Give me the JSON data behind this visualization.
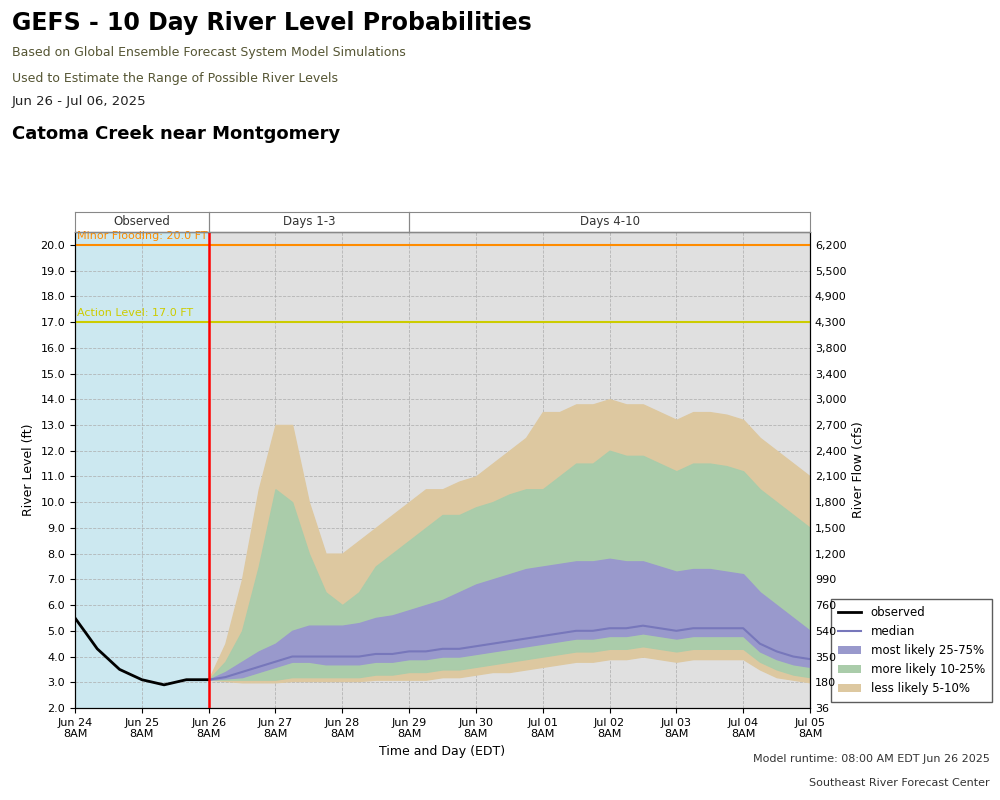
{
  "title": "GEFS - 10 Day River Level Probabilities",
  "subtitle1": "Based on Global Ensemble Forecast System Model Simulations",
  "subtitle2": "Used to Estimate the Range of Possible River Levels",
  "date_range": "Jun 26 - Jul 06, 2025",
  "location": "Catoma Creek near Montgomery",
  "header_bg": "#d4d4a0",
  "plot_bg_observed": "#cce8f0",
  "plot_bg_forecast": "#e0e0e0",
  "minor_flood_level": 20.0,
  "action_level": 17.0,
  "minor_flood_color": "#ff8c00",
  "action_level_color": "#cccc00",
  "ylabel_left": "River Level (ft)",
  "ylabel_right": "River Flow (cfs)",
  "xlabel": "Time and Day (EDT)",
  "ylim_left": [
    2.0,
    20.5
  ],
  "yticks_left": [
    2.0,
    3.0,
    4.0,
    5.0,
    6.0,
    7.0,
    8.0,
    9.0,
    10.0,
    11.0,
    12.0,
    13.0,
    14.0,
    15.0,
    16.0,
    17.0,
    18.0,
    19.0,
    20.0
  ],
  "yticks_right": [
    36,
    180,
    350,
    540,
    760,
    990,
    1200,
    1500,
    1800,
    2100,
    2400,
    2700,
    3000,
    3400,
    3800,
    4300,
    4900,
    5500,
    6200
  ],
  "model_runtime": "Model runtime: 08:00 AM EDT Jun 26 2025",
  "forecast_center": "Southeast River Forecast Center",
  "observed_color": "#000000",
  "median_color": "#7777bb",
  "band25_75_color": "#9999cc",
  "band10_25_color": "#aaccaa",
  "band5_10_color": "#ddc8a0",
  "xtick_labels": [
    "Jun 24\n8AM",
    "Jun 25\n8AM",
    "Jun 26\n8AM",
    "Jun 27\n8AM",
    "Jun 28\n8AM",
    "Jun 29\n8AM",
    "Jun 30\n8AM",
    "Jul 01\n8AM",
    "Jul 02\n8AM",
    "Jul 03\n8AM",
    "Jul 04\n8AM",
    "Jul 05\n8AM"
  ],
  "xtick_positions": [
    0,
    1,
    2,
    3,
    4,
    5,
    6,
    7,
    8,
    9,
    10,
    11
  ],
  "observed_x": [
    0.0,
    0.083,
    0.167,
    0.25,
    0.333,
    0.417,
    0.5,
    0.583,
    0.667,
    0.75,
    0.833,
    0.917,
    1.0,
    1.083,
    1.167,
    1.25,
    1.333,
    1.417,
    1.5,
    1.583,
    1.667,
    1.75,
    1.833,
    1.917,
    2.0
  ],
  "observed_y": [
    5.5,
    5.2,
    4.9,
    4.6,
    4.3,
    4.1,
    3.9,
    3.7,
    3.5,
    3.4,
    3.3,
    3.2,
    3.1,
    3.05,
    3.0,
    2.95,
    2.9,
    2.95,
    3.0,
    3.05,
    3.1,
    3.1,
    3.1,
    3.1,
    3.1
  ],
  "forecast_x": [
    2.0,
    2.25,
    2.5,
    2.75,
    3.0,
    3.25,
    3.5,
    3.75,
    4.0,
    4.25,
    4.5,
    4.75,
    5.0,
    5.25,
    5.5,
    5.75,
    6.0,
    6.25,
    6.5,
    6.75,
    7.0,
    7.25,
    7.5,
    7.75,
    8.0,
    8.25,
    8.5,
    8.75,
    9.0,
    9.25,
    9.5,
    9.75,
    10.0,
    10.25,
    10.5,
    10.75,
    11.0
  ],
  "median_y": [
    3.1,
    3.2,
    3.4,
    3.6,
    3.8,
    4.0,
    4.0,
    4.0,
    4.0,
    4.0,
    4.1,
    4.1,
    4.2,
    4.2,
    4.3,
    4.3,
    4.4,
    4.5,
    4.6,
    4.7,
    4.8,
    4.9,
    5.0,
    5.0,
    5.1,
    5.1,
    5.2,
    5.1,
    5.0,
    5.1,
    5.1,
    5.1,
    5.1,
    4.5,
    4.2,
    4.0,
    3.9
  ],
  "p25_y": [
    3.1,
    3.15,
    3.2,
    3.4,
    3.6,
    3.8,
    3.8,
    3.7,
    3.7,
    3.7,
    3.8,
    3.8,
    3.9,
    3.9,
    4.0,
    4.0,
    4.1,
    4.2,
    4.3,
    4.4,
    4.5,
    4.6,
    4.7,
    4.7,
    4.8,
    4.8,
    4.9,
    4.8,
    4.7,
    4.8,
    4.8,
    4.8,
    4.8,
    4.2,
    3.9,
    3.7,
    3.6
  ],
  "p75_y": [
    3.1,
    3.4,
    3.8,
    4.2,
    4.5,
    5.0,
    5.2,
    5.2,
    5.2,
    5.3,
    5.5,
    5.6,
    5.8,
    6.0,
    6.2,
    6.5,
    6.8,
    7.0,
    7.2,
    7.4,
    7.5,
    7.6,
    7.7,
    7.7,
    7.8,
    7.7,
    7.7,
    7.5,
    7.3,
    7.4,
    7.4,
    7.3,
    7.2,
    6.5,
    6.0,
    5.5,
    5.0
  ],
  "p10_y": [
    3.1,
    3.1,
    3.1,
    3.1,
    3.1,
    3.2,
    3.2,
    3.2,
    3.2,
    3.2,
    3.3,
    3.3,
    3.4,
    3.4,
    3.5,
    3.5,
    3.6,
    3.7,
    3.8,
    3.9,
    4.0,
    4.1,
    4.2,
    4.2,
    4.3,
    4.3,
    4.4,
    4.3,
    4.2,
    4.3,
    4.3,
    4.3,
    4.3,
    3.8,
    3.5,
    3.3,
    3.2
  ],
  "p90_y": [
    3.1,
    3.8,
    5.0,
    7.5,
    10.5,
    10.0,
    8.0,
    6.5,
    6.0,
    6.5,
    7.5,
    8.0,
    8.5,
    9.0,
    9.5,
    9.5,
    9.8,
    10.0,
    10.3,
    10.5,
    10.5,
    11.0,
    11.5,
    11.5,
    12.0,
    11.8,
    11.8,
    11.5,
    11.2,
    11.5,
    11.5,
    11.4,
    11.2,
    10.5,
    10.0,
    9.5,
    9.0
  ],
  "p5_y": [
    3.1,
    3.05,
    3.0,
    3.0,
    3.0,
    3.05,
    3.05,
    3.05,
    3.05,
    3.05,
    3.1,
    3.1,
    3.1,
    3.1,
    3.2,
    3.2,
    3.3,
    3.4,
    3.4,
    3.5,
    3.6,
    3.7,
    3.8,
    3.8,
    3.9,
    3.9,
    4.0,
    3.9,
    3.8,
    3.9,
    3.9,
    3.9,
    3.9,
    3.5,
    3.2,
    3.1,
    3.0
  ],
  "p95_y": [
    3.1,
    4.5,
    7.0,
    10.5,
    13.0,
    13.0,
    10.0,
    8.0,
    8.0,
    8.5,
    9.0,
    9.5,
    10.0,
    10.5,
    10.5,
    10.8,
    11.0,
    11.5,
    12.0,
    12.5,
    13.5,
    13.5,
    13.8,
    13.8,
    14.0,
    13.8,
    13.8,
    13.5,
    13.2,
    13.5,
    13.5,
    13.4,
    13.2,
    12.5,
    12.0,
    11.5,
    11.0
  ],
  "days13_start": 2.0,
  "days13_end": 5.0,
  "days410_start": 5.0,
  "days410_end": 11.0,
  "obs_end": 2.0,
  "xlim": [
    0,
    11
  ]
}
